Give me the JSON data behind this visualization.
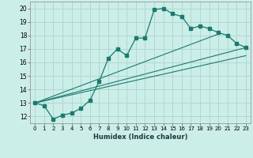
{
  "xlabel": "Humidex (Indice chaleur)",
  "bg_color": "#cceee8",
  "line_color": "#1a7a6e",
  "grid_color": "#b0d8d0",
  "xlim": [
    -0.5,
    23.5
  ],
  "ylim": [
    11.5,
    20.5
  ],
  "xticks": [
    0,
    1,
    2,
    3,
    4,
    5,
    6,
    7,
    8,
    9,
    10,
    11,
    12,
    13,
    14,
    15,
    16,
    17,
    18,
    19,
    20,
    21,
    22,
    23
  ],
  "yticks": [
    12,
    13,
    14,
    15,
    16,
    17,
    18,
    19,
    20
  ],
  "curve1_x": [
    0,
    1,
    2,
    3,
    4,
    5,
    6,
    7,
    8,
    9,
    10,
    11,
    12,
    13,
    14,
    15,
    16,
    17,
    18,
    19,
    20,
    21,
    22,
    23
  ],
  "curve1_y": [
    13.0,
    12.8,
    11.8,
    12.1,
    12.25,
    12.6,
    13.2,
    14.6,
    16.3,
    17.0,
    16.5,
    17.8,
    17.8,
    19.9,
    20.0,
    19.6,
    19.4,
    18.5,
    18.7,
    18.5,
    18.2,
    18.0,
    17.4,
    17.1
  ],
  "line1_x": [
    0,
    23
  ],
  "line1_y": [
    13.0,
    17.1
  ],
  "line2_x": [
    0,
    20
  ],
  "line2_y": [
    13.0,
    18.1
  ],
  "line3_x": [
    0,
    23
  ],
  "line3_y": [
    13.0,
    16.5
  ]
}
